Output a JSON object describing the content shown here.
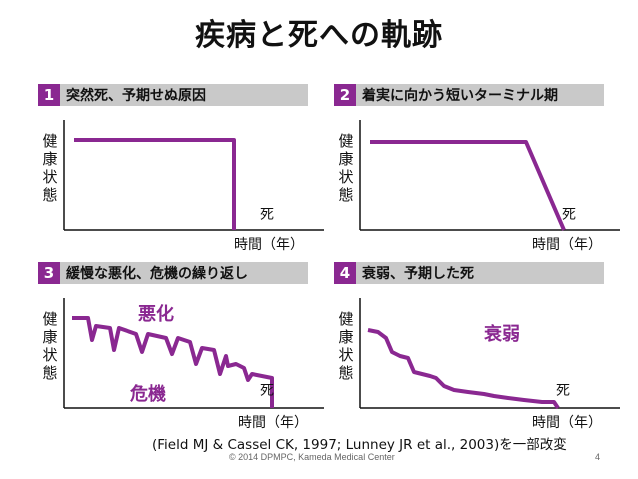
{
  "title": "疾病と死への軌跡",
  "y_axis_label": "健康状態",
  "x_axis_label": "時間（年）",
  "death_label": "死",
  "line_color": "#8a2891",
  "panels": [
    {
      "num": "1",
      "heading": "突然死、予期せぬ原因"
    },
    {
      "num": "2",
      "heading": "着実に向かう短いターミナル期"
    },
    {
      "num": "3",
      "heading": "緩慢な悪化、危機の繰り返し",
      "annotations": [
        "悪化",
        "危機"
      ]
    },
    {
      "num": "4",
      "heading": "衰弱、予期した死",
      "annotations": [
        "衰弱"
      ]
    }
  ],
  "citation": "(Field MJ & Cassel CK, 1997; Lunney JR et al., 2003)を一部改変",
  "footer": "© 2014 DPMPC, Kameda Medical Center",
  "page_number": "4"
}
